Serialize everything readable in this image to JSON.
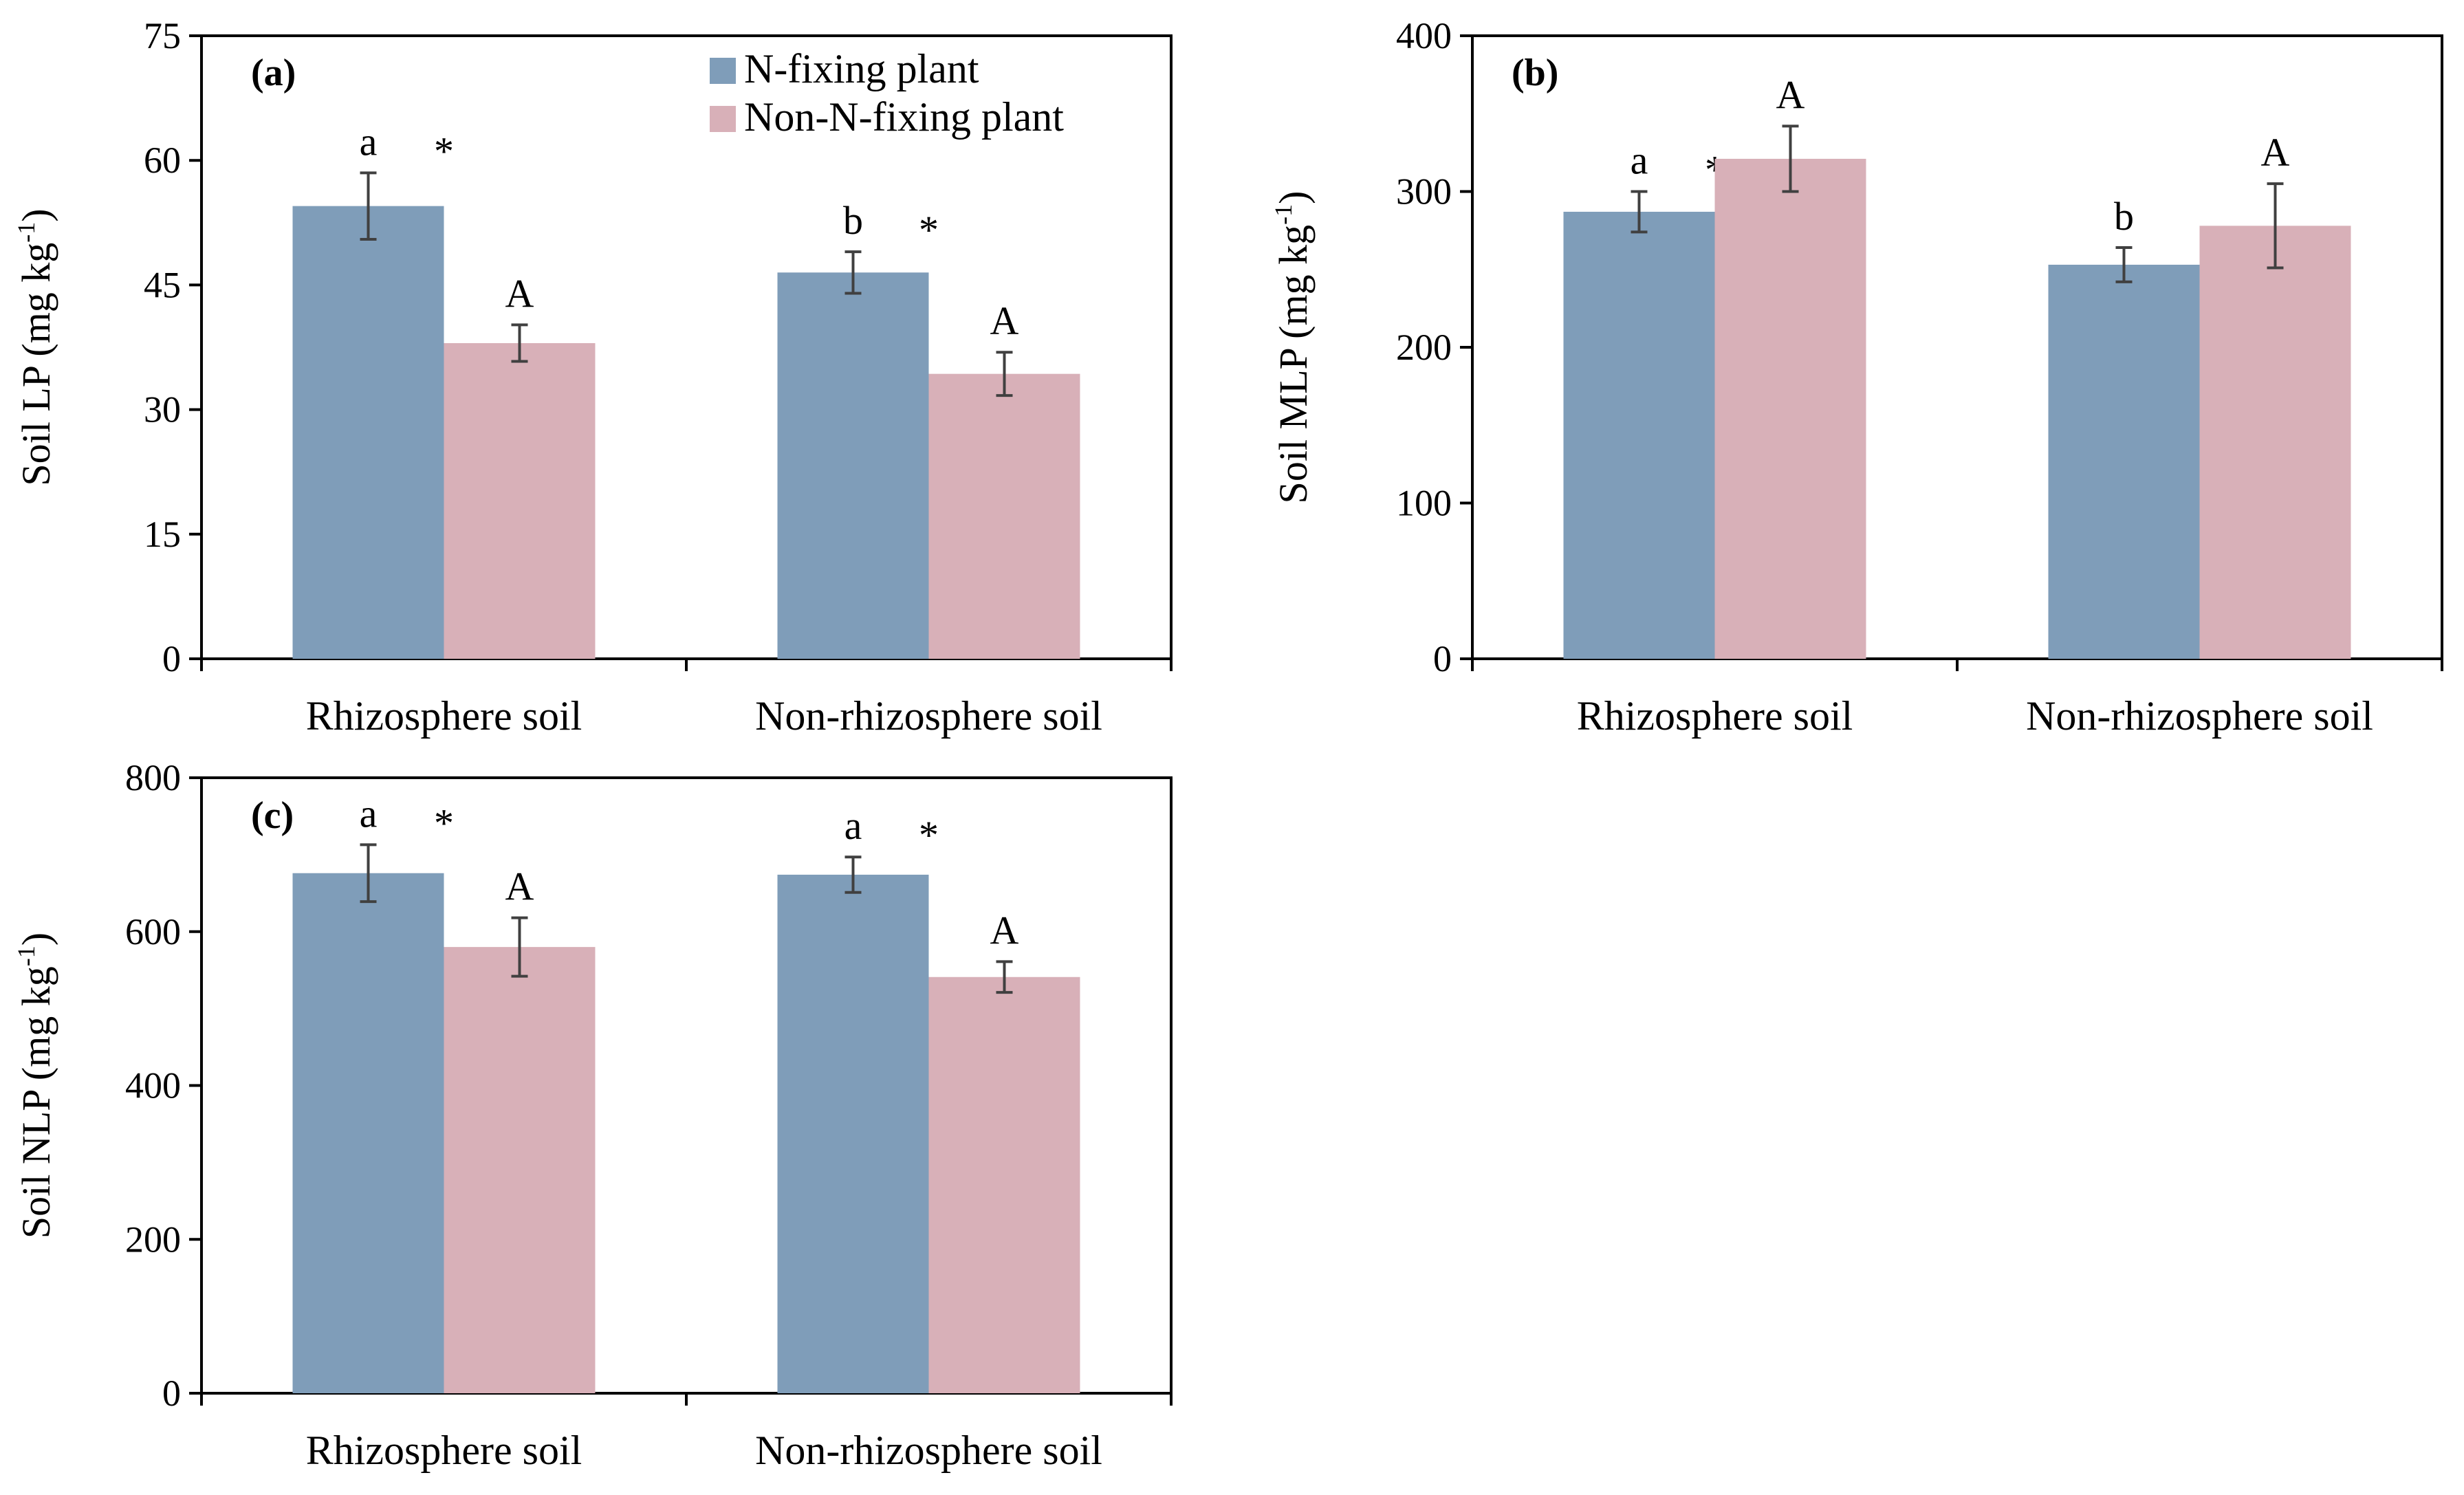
{
  "legend": {
    "items": [
      {
        "label": "N-fixing plant",
        "color": "#7f9db9"
      },
      {
        "label": "Non-N-fixing plant",
        "color": "#d8b0b8"
      }
    ]
  },
  "chart_data": [
    {
      "type": "bar",
      "panel": "(a)",
      "title": "",
      "xlabel": "",
      "ylabel": "Soil LP (mg kg",
      "ylabel_sup": "-1",
      "ylabel_tail": ")",
      "ylim": [
        0,
        75
      ],
      "yticks": [
        0,
        15,
        30,
        45,
        60,
        75
      ],
      "categories": [
        "Rhizosphere soil",
        "Non-rhizosphere soil"
      ],
      "series": [
        {
          "name": "N-fixing plant",
          "values": [
            54.5,
            46.5
          ],
          "errors": [
            4.0,
            2.5
          ],
          "letters": [
            "a",
            "b"
          ],
          "stars": [
            "*",
            "*"
          ]
        },
        {
          "name": "Non-N-fixing plant",
          "values": [
            38,
            34.3
          ],
          "errors": [
            2.2,
            2.6
          ],
          "letters": [
            "A",
            "A"
          ]
        }
      ]
    },
    {
      "type": "bar",
      "panel": "(b)",
      "title": "",
      "xlabel": "",
      "ylabel": "Soil MLP (mg kg",
      "ylabel_sup": "-1",
      "ylabel_tail": ")",
      "ylim": [
        0,
        400
      ],
      "yticks": [
        0,
        100,
        200,
        300,
        400
      ],
      "categories": [
        "Rhizosphere soil",
        "Non-rhizosphere soil"
      ],
      "series": [
        {
          "name": "N-fixing plant",
          "values": [
            287,
            253
          ],
          "errors": [
            13,
            11
          ],
          "letters": [
            "a",
            "b"
          ],
          "stars": [
            "*",
            ""
          ]
        },
        {
          "name": "Non-N-fixing plant",
          "values": [
            321,
            278
          ],
          "errors": [
            21,
            27
          ],
          "letters": [
            "A",
            "A"
          ]
        }
      ]
    },
    {
      "type": "bar",
      "panel": "(c)",
      "title": "",
      "xlabel": "",
      "ylabel": "Soil NLP (mg kg",
      "ylabel_sup": "-1",
      "ylabel_tail": ")",
      "ylim": [
        0,
        800
      ],
      "yticks": [
        0,
        200,
        400,
        600,
        800
      ],
      "categories": [
        "Rhizosphere soil",
        "Non-rhizosphere soil"
      ],
      "series": [
        {
          "name": "N-fixing plant",
          "values": [
            676,
            674
          ],
          "errors": [
            37,
            23
          ],
          "letters": [
            "a",
            "a"
          ],
          "stars": [
            "*",
            "*"
          ]
        },
        {
          "name": "Non-N-fixing plant",
          "values": [
            580,
            541
          ],
          "errors": [
            38,
            20
          ],
          "letters": [
            "A",
            "A"
          ]
        }
      ]
    }
  ]
}
